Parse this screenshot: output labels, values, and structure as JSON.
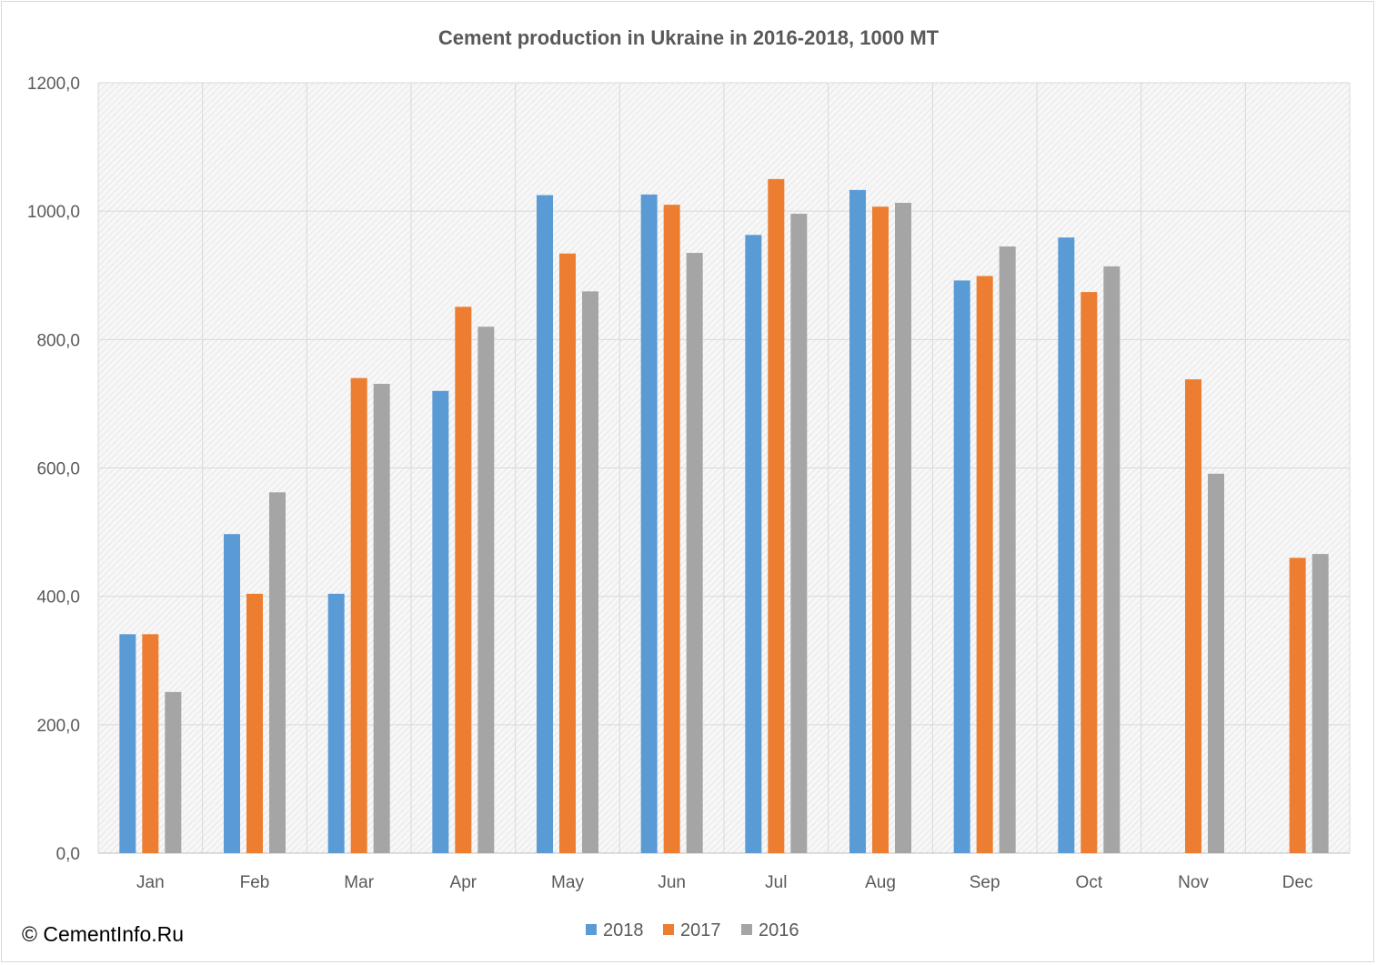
{
  "copyright": "© CementInfo.Ru",
  "chart_data": {
    "type": "bar",
    "title": "Cement production in Ukraine in 2016-2018, 1000 MT",
    "xlabel": "",
    "ylabel": "",
    "ylim": [
      0,
      1200
    ],
    "yticks": [
      "0,0",
      "200,0",
      "400,0",
      "600,0",
      "800,0",
      "1000,0",
      "1200,0"
    ],
    "ytick_values": [
      0,
      200,
      400,
      600,
      800,
      1000,
      1200
    ],
    "categories": [
      "Jan",
      "Feb",
      "Mar",
      "Apr",
      "May",
      "Jun",
      "Jul",
      "Aug",
      "Sep",
      "Oct",
      "Nov",
      "Dec"
    ],
    "series": [
      {
        "name": "2018",
        "color": "#5b9bd5",
        "values": [
          341,
          497,
          404,
          720,
          1025,
          1026,
          963,
          1033,
          892,
          959,
          null,
          null
        ]
      },
      {
        "name": "2017",
        "color": "#ed7d31",
        "values": [
          341,
          404,
          740,
          851,
          934,
          1010,
          1050,
          1007,
          899,
          874,
          738,
          460
        ]
      },
      {
        "name": "2016",
        "color": "#a5a5a5",
        "values": [
          251,
          562,
          731,
          820,
          875,
          935,
          996,
          1013,
          945,
          914,
          591,
          466
        ]
      }
    ],
    "grid": true,
    "legend": "bottom"
  }
}
